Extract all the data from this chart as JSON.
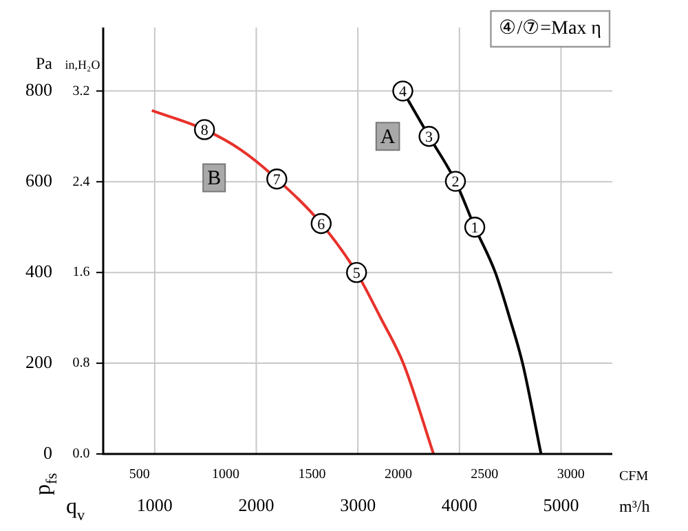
{
  "chart_data": {
    "type": "line",
    "xlabel": "CFM",
    "x2label": "m³/h",
    "ylabel": "Pa",
    "y2label": "in,H₂O",
    "xlim": [
      290,
      3240
    ],
    "xticks": [
      500,
      1000,
      1500,
      2000,
      2500,
      3000
    ],
    "x2lim": [
      493,
      5505
    ],
    "x2ticks": [
      1000,
      2000,
      3000,
      4000,
      5000
    ],
    "ylim": [
      0,
      940
    ],
    "yticks": [
      0,
      200,
      400,
      600,
      800
    ],
    "y2lim": [
      0,
      3.76
    ],
    "y2ticks": [
      {
        "value": 0,
        "label": "0.0"
      },
      {
        "value": 0.8,
        "label": "0.8"
      },
      {
        "value": 1.6,
        "label": "1.6"
      },
      {
        "value": 2.4,
        "label": "2.4"
      },
      {
        "value": 3.2,
        "label": "3.2"
      }
    ],
    "grid": true,
    "legend": false,
    "line_style": "solid",
    "series": [
      {
        "name": "A",
        "color": "#000000",
        "x": [
          2026,
          2178,
          2331,
          2443,
          2562,
          2645,
          2721,
          2827
        ],
        "values": [
          800,
          700,
          601,
          500,
          400,
          300,
          198,
          0
        ]
      },
      {
        "name": "B",
        "color": "#e8312a",
        "x": [
          572,
          877,
          1089,
          1296,
          1553,
          1758,
          1899,
          2031,
          2204
        ],
        "values": [
          757,
          715,
          670,
          606,
          508,
          400,
          299,
          198,
          0
        ]
      }
    ],
    "annotations": [
      {
        "text": "1",
        "x": 2443,
        "y": 500
      },
      {
        "text": "2",
        "x": 2331,
        "y": 601
      },
      {
        "text": "3",
        "x": 2178,
        "y": 700
      },
      {
        "text": "4",
        "x": 2026,
        "y": 800
      },
      {
        "text": "5",
        "x": 1758,
        "y": 400
      },
      {
        "text": "6",
        "x": 1553,
        "y": 508
      },
      {
        "text": "7",
        "x": 1296,
        "y": 606
      },
      {
        "text": "8",
        "x": 877,
        "y": 715
      },
      "④/⑦=Max η",
      "p$_{fs}$",
      "q$_{v}$"
    ]
  }
}
